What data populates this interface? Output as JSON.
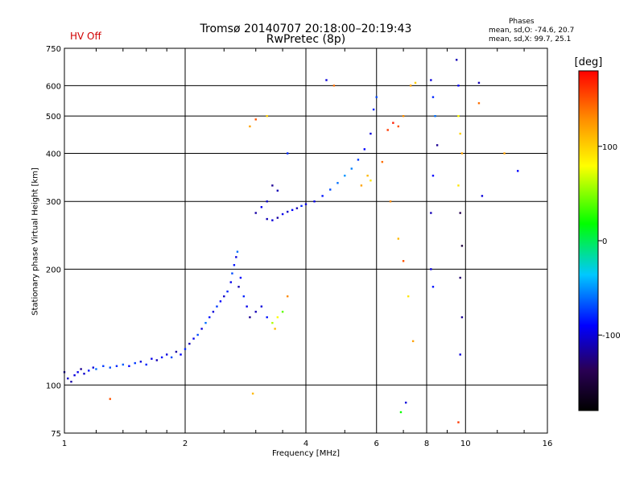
{
  "header": {
    "title": "Tromsø 20140707 20:18:00–20:19:43",
    "subtitle": "RwPretec (8p)",
    "status": "HV Off",
    "stats_heading": "Phases",
    "stats_line1": "mean, sd,O: -74.6, 20.7",
    "stats_line2": "mean, sd,X:  99.7, 25.1"
  },
  "colors": {
    "status": "#d00000",
    "grid": "#000000",
    "axes": "#000000"
  },
  "chart_data": {
    "type": "scatter",
    "xlabel": "Frequency [MHz]",
    "ylabel": "Stationary phase Virtual Height [km]",
    "xscale": "log",
    "yscale": "log",
    "xlim": [
      1,
      16
    ],
    "ylim": [
      75,
      750
    ],
    "xticks": [
      1,
      2,
      4,
      6,
      8,
      10,
      16
    ],
    "xtick_labels": [
      "1",
      "2",
      "4",
      "6",
      "8",
      "10",
      "16"
    ],
    "yticks": [
      75,
      100,
      200,
      300,
      400,
      500,
      600,
      750
    ],
    "ytick_labels": [
      "75",
      "100",
      "200",
      "300",
      "400",
      "500",
      "600",
      "750"
    ],
    "grid": true,
    "colorbar": {
      "label": "[deg]",
      "ticks": [
        100,
        0,
        -100
      ],
      "tick_labels": [
        "100",
        "0",
        "-100"
      ],
      "range": [
        -180,
        180
      ]
    },
    "points": [
      [
        1.0,
        108,
        -110
      ],
      [
        1.02,
        104,
        -105
      ],
      [
        1.04,
        102,
        -115
      ],
      [
        1.06,
        106,
        -100
      ],
      [
        1.08,
        108,
        -95
      ],
      [
        1.1,
        110,
        -120
      ],
      [
        1.12,
        107,
        -105
      ],
      [
        1.15,
        109,
        -85
      ],
      [
        1.18,
        111,
        -100
      ],
      [
        1.2,
        110,
        -60
      ],
      [
        1.25,
        112,
        -75
      ],
      [
        1.3,
        111,
        -70
      ],
      [
        1.35,
        112,
        -80
      ],
      [
        1.4,
        113,
        -65
      ],
      [
        1.45,
        112,
        -90
      ],
      [
        1.5,
        114,
        -75
      ],
      [
        1.55,
        115,
        -100
      ],
      [
        1.6,
        113,
        -80
      ],
      [
        1.65,
        117,
        -95
      ],
      [
        1.7,
        116,
        -110
      ],
      [
        1.75,
        118,
        -85
      ],
      [
        1.8,
        120,
        -100
      ],
      [
        1.85,
        118,
        -70
      ],
      [
        1.9,
        122,
        -115
      ],
      [
        1.95,
        120,
        -90
      ],
      [
        2.0,
        124,
        -80
      ],
      [
        2.05,
        128,
        -110
      ],
      [
        2.1,
        132,
        -95
      ],
      [
        2.15,
        135,
        -70
      ],
      [
        2.2,
        140,
        -100
      ],
      [
        2.25,
        145,
        -60
      ],
      [
        2.3,
        150,
        -85
      ],
      [
        2.35,
        155,
        -100
      ],
      [
        2.4,
        160,
        -75
      ],
      [
        2.45,
        165,
        -90
      ],
      [
        2.5,
        170,
        -105
      ],
      [
        2.55,
        175,
        -80
      ],
      [
        2.6,
        185,
        -95
      ],
      [
        2.62,
        195,
        -70
      ],
      [
        2.65,
        205,
        -85
      ],
      [
        2.68,
        215,
        -100
      ],
      [
        2.7,
        222,
        -60
      ],
      [
        2.72,
        180,
        -110
      ],
      [
        2.75,
        190,
        -90
      ],
      [
        2.8,
        170,
        -80
      ],
      [
        2.85,
        160,
        -95
      ],
      [
        2.9,
        150,
        -120
      ],
      [
        3.0,
        155,
        -110
      ],
      [
        3.1,
        160,
        -100
      ],
      [
        3.2,
        150,
        -85
      ],
      [
        3.3,
        145,
        60
      ],
      [
        3.35,
        140,
        110
      ],
      [
        3.4,
        150,
        80
      ],
      [
        3.5,
        155,
        40
      ],
      [
        3.6,
        170,
        130
      ],
      [
        3.2,
        270,
        -110
      ],
      [
        3.3,
        268,
        -100
      ],
      [
        3.4,
        272,
        -115
      ],
      [
        3.5,
        278,
        -95
      ],
      [
        3.6,
        282,
        -105
      ],
      [
        3.7,
        285,
        -90
      ],
      [
        3.8,
        288,
        -110
      ],
      [
        3.9,
        292,
        -80
      ],
      [
        4.0,
        295,
        -100
      ],
      [
        4.2,
        300,
        -95
      ],
      [
        4.4,
        310,
        -85
      ],
      [
        4.6,
        322,
        -70
      ],
      [
        4.8,
        335,
        -60
      ],
      [
        5.0,
        350,
        -50
      ],
      [
        5.2,
        365,
        -55
      ],
      [
        5.4,
        385,
        -75
      ],
      [
        5.6,
        410,
        -90
      ],
      [
        5.8,
        450,
        -100
      ],
      [
        5.9,
        520,
        -80
      ],
      [
        6.0,
        560,
        -70
      ],
      [
        3.3,
        330,
        -120
      ],
      [
        3.4,
        320,
        -110
      ],
      [
        3.2,
        300,
        -105
      ],
      [
        3.1,
        290,
        -95
      ],
      [
        3.0,
        280,
        -115
      ],
      [
        5.5,
        330,
        120
      ],
      [
        5.7,
        350,
        110
      ],
      [
        5.8,
        340,
        90
      ],
      [
        6.2,
        380,
        140
      ],
      [
        6.4,
        460,
        160
      ],
      [
        6.6,
        480,
        170
      ],
      [
        6.8,
        470,
        150
      ],
      [
        7.0,
        500,
        130
      ],
      [
        7.3,
        600,
        120
      ],
      [
        7.5,
        610,
        100
      ],
      [
        6.5,
        300,
        130
      ],
      [
        6.8,
        240,
        110
      ],
      [
        7.0,
        210,
        150
      ],
      [
        7.2,
        170,
        90
      ],
      [
        7.4,
        130,
        120
      ],
      [
        8.2,
        620,
        -100
      ],
      [
        8.3,
        560,
        -80
      ],
      [
        8.4,
        500,
        -60
      ],
      [
        8.5,
        420,
        -120
      ],
      [
        8.3,
        350,
        -90
      ],
      [
        8.2,
        280,
        -110
      ],
      [
        8.2,
        200,
        -100
      ],
      [
        8.3,
        180,
        -85
      ],
      [
        9.5,
        700,
        -110
      ],
      [
        9.6,
        600,
        -90
      ],
      [
        9.6,
        500,
        80
      ],
      [
        9.7,
        450,
        100
      ],
      [
        9.8,
        400,
        120
      ],
      [
        9.6,
        330,
        90
      ],
      [
        9.7,
        280,
        -140
      ],
      [
        9.8,
        230,
        -150
      ],
      [
        9.7,
        190,
        -130
      ],
      [
        9.8,
        150,
        -120
      ],
      [
        9.7,
        120,
        -100
      ],
      [
        9.6,
        80,
        160
      ],
      [
        10.8,
        610,
        -110
      ],
      [
        10.8,
        540,
        140
      ],
      [
        11.0,
        310,
        -100
      ],
      [
        12.5,
        400,
        120
      ],
      [
        13.5,
        360,
        -90
      ],
      [
        3.0,
        490,
        150
      ],
      [
        2.9,
        470,
        120
      ],
      [
        3.2,
        500,
        100
      ],
      [
        4.5,
        620,
        -100
      ],
      [
        4.7,
        600,
        140
      ],
      [
        1.3,
        92,
        150
      ],
      [
        2.95,
        95,
        110
      ],
      [
        7.1,
        90,
        -100
      ],
      [
        6.9,
        85,
        20
      ],
      [
        3.6,
        400,
        -80
      ]
    ]
  }
}
